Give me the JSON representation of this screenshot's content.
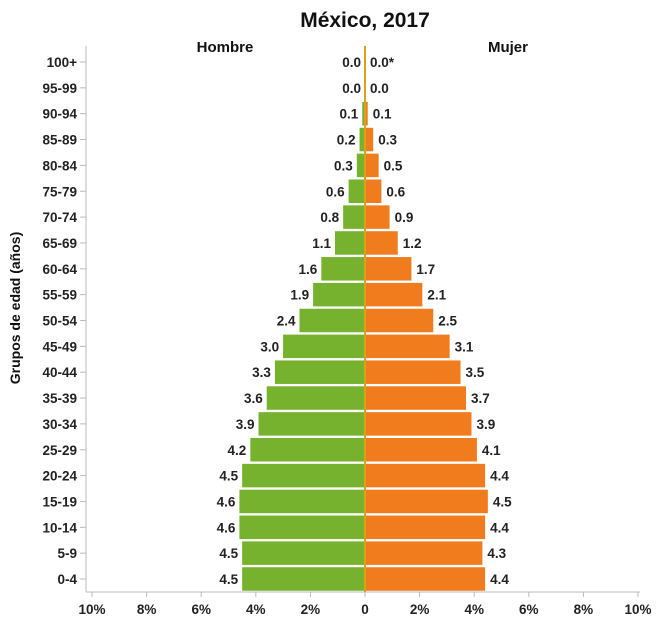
{
  "chart_data": {
    "type": "bar",
    "orientation": "horizontal",
    "layout": "population-pyramid",
    "title": "México, 2017",
    "ylabel": "Grupos de edad (años)",
    "categories": [
      "0-4",
      "5-9",
      "10-14",
      "15-19",
      "20-24",
      "25-29",
      "30-34",
      "35-39",
      "40-44",
      "45-49",
      "50-54",
      "55-59",
      "60-64",
      "65-69",
      "70-74",
      "75-79",
      "80-84",
      "85-89",
      "90-94",
      "95-99",
      "100+"
    ],
    "series": [
      {
        "name": "Hombre",
        "side": "left",
        "color": "#77b22e",
        "values": [
          4.5,
          4.5,
          4.6,
          4.6,
          4.5,
          4.2,
          3.9,
          3.6,
          3.3,
          3.0,
          2.4,
          1.9,
          1.6,
          1.1,
          0.8,
          0.6,
          0.3,
          0.2,
          0.1,
          0.0,
          0.0
        ],
        "labels": [
          "4.5",
          "4.5",
          "4.6",
          "4.6",
          "4.5",
          "4.2",
          "3.9",
          "3.6",
          "3.3",
          "3.0",
          "2.4",
          "1.9",
          "1.6",
          "1.1",
          "0.8",
          "0.6",
          "0.3",
          "0.2",
          "0.1",
          "0.0",
          "0.0"
        ]
      },
      {
        "name": "Mujer",
        "side": "right",
        "color": "#f07c1e",
        "values": [
          4.4,
          4.3,
          4.4,
          4.5,
          4.4,
          4.1,
          3.9,
          3.7,
          3.5,
          3.1,
          2.5,
          2.1,
          1.7,
          1.2,
          0.9,
          0.6,
          0.5,
          0.3,
          0.1,
          0.0,
          0.0
        ],
        "labels": [
          "4.4",
          "4.3",
          "4.4",
          "4.5",
          "4.4",
          "4.1",
          "3.9",
          "3.7",
          "3.5",
          "3.1",
          "2.5",
          "2.1",
          "1.7",
          "1.2",
          "0.9",
          "0.6",
          "0.5",
          "0.3",
          "0.1",
          "0.0",
          "0.0*"
        ]
      }
    ],
    "xlim": [
      -10,
      10
    ],
    "xticks": [
      -10,
      -8,
      -6,
      -4,
      -2,
      0,
      2,
      4,
      6,
      8,
      10
    ],
    "xtick_labels": [
      "10%",
      "8%",
      "6%",
      "4%",
      "2%",
      "0",
      "2%",
      "4%",
      "6%",
      "8%",
      "10%"
    ],
    "center_line_color": "#d9a21b",
    "grid": false
  }
}
